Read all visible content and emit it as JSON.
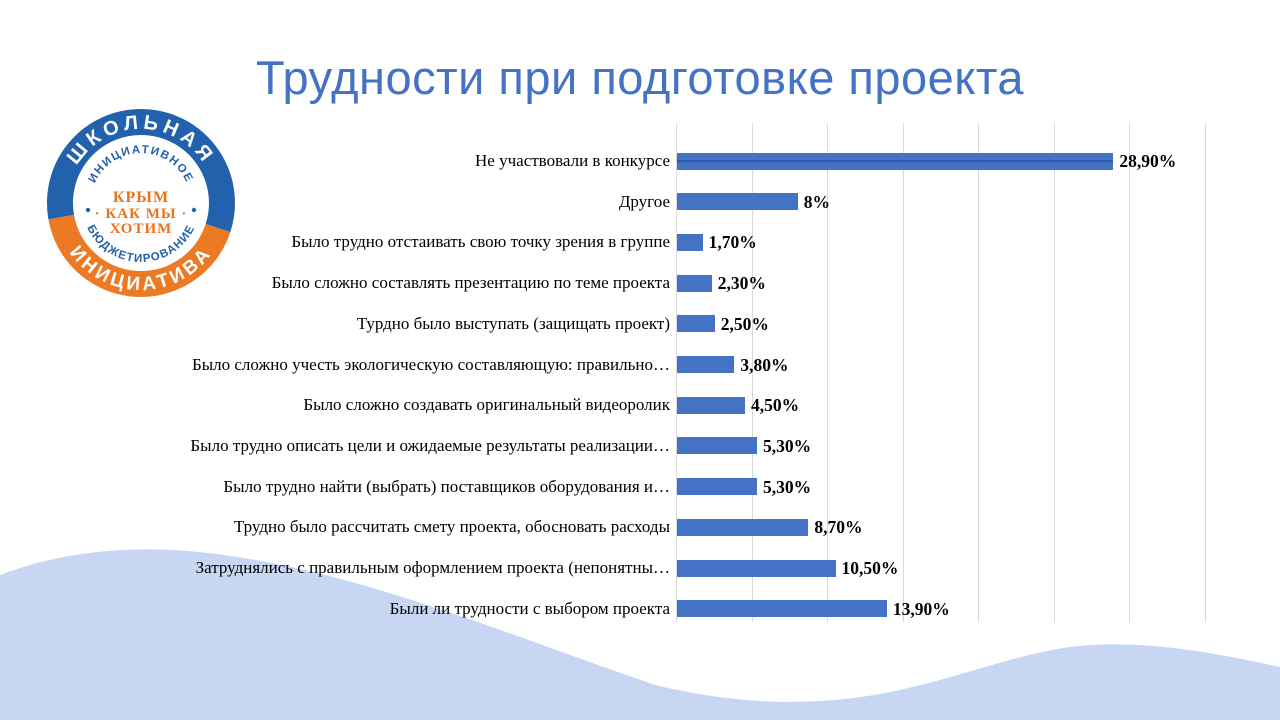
{
  "slide": {
    "title": "Трудности при подготовке проекта",
    "title_color": "#4472C4",
    "background_color": "#FFFFFF",
    "wave_color": "#C7D6F2"
  },
  "logo": {
    "outer_top": "ШКОЛЬНАЯ",
    "outer_bottom": "ИНИЦИАТИВА",
    "inner_ring_top": "ИНИЦИАТИВНОЕ",
    "inner_ring_bottom": "БЮДЖЕТИРОВАНИЕ",
    "center_line1": "КРЫМ",
    "center_line2": "· КАК МЫ ·",
    "center_line3": "ХОТИМ",
    "blue_color": "#2261AC",
    "orange_color": "#EC7A25",
    "center_text_color": "#ED7217"
  },
  "chart_data": {
    "type": "bar",
    "orientation": "horizontal",
    "title": "",
    "categories": [
      "Не участвовали в конкурсе",
      "Другое",
      "Было трудно отстаивать свою точку зрения в группе",
      "Было сложно составлять презентацию по теме проекта",
      "Турдно было выступать (защищать проект)",
      "Было сложно учесть экологическую составляющую: правильно…",
      "Было сложно создавать оригинальный видеоролик",
      "Было трудно описать цели и ожидаемые результаты реализации…",
      "Было трудно найти (выбрать) поставщиков оборудования и…",
      "Трудно было рассчитать смету проекта, обосновать расходы",
      "Затруднялись с правильным оформлением проекта (непонятны…",
      "Были ли трудности с выбором проекта"
    ],
    "values": [
      28.9,
      8,
      1.7,
      2.3,
      2.5,
      3.8,
      4.5,
      5.3,
      5.3,
      8.7,
      10.5,
      13.9
    ],
    "value_labels": [
      "28,90%",
      "8%",
      "1,70%",
      "2,30%",
      "2,50%",
      "3,80%",
      "4,50%",
      "5,30%",
      "5,30%",
      "8,70%",
      "10,50%",
      "13,90%"
    ],
    "xlabel": "",
    "ylabel": "",
    "xlim": [
      0,
      35
    ],
    "gridline_step_pct": 5,
    "grid": true,
    "legend": false,
    "bar_color": "#4472C4",
    "first_bar_midline_color": "#2E5AA8",
    "gridline_color": "#D9D9D9",
    "label_color": "#000000"
  }
}
